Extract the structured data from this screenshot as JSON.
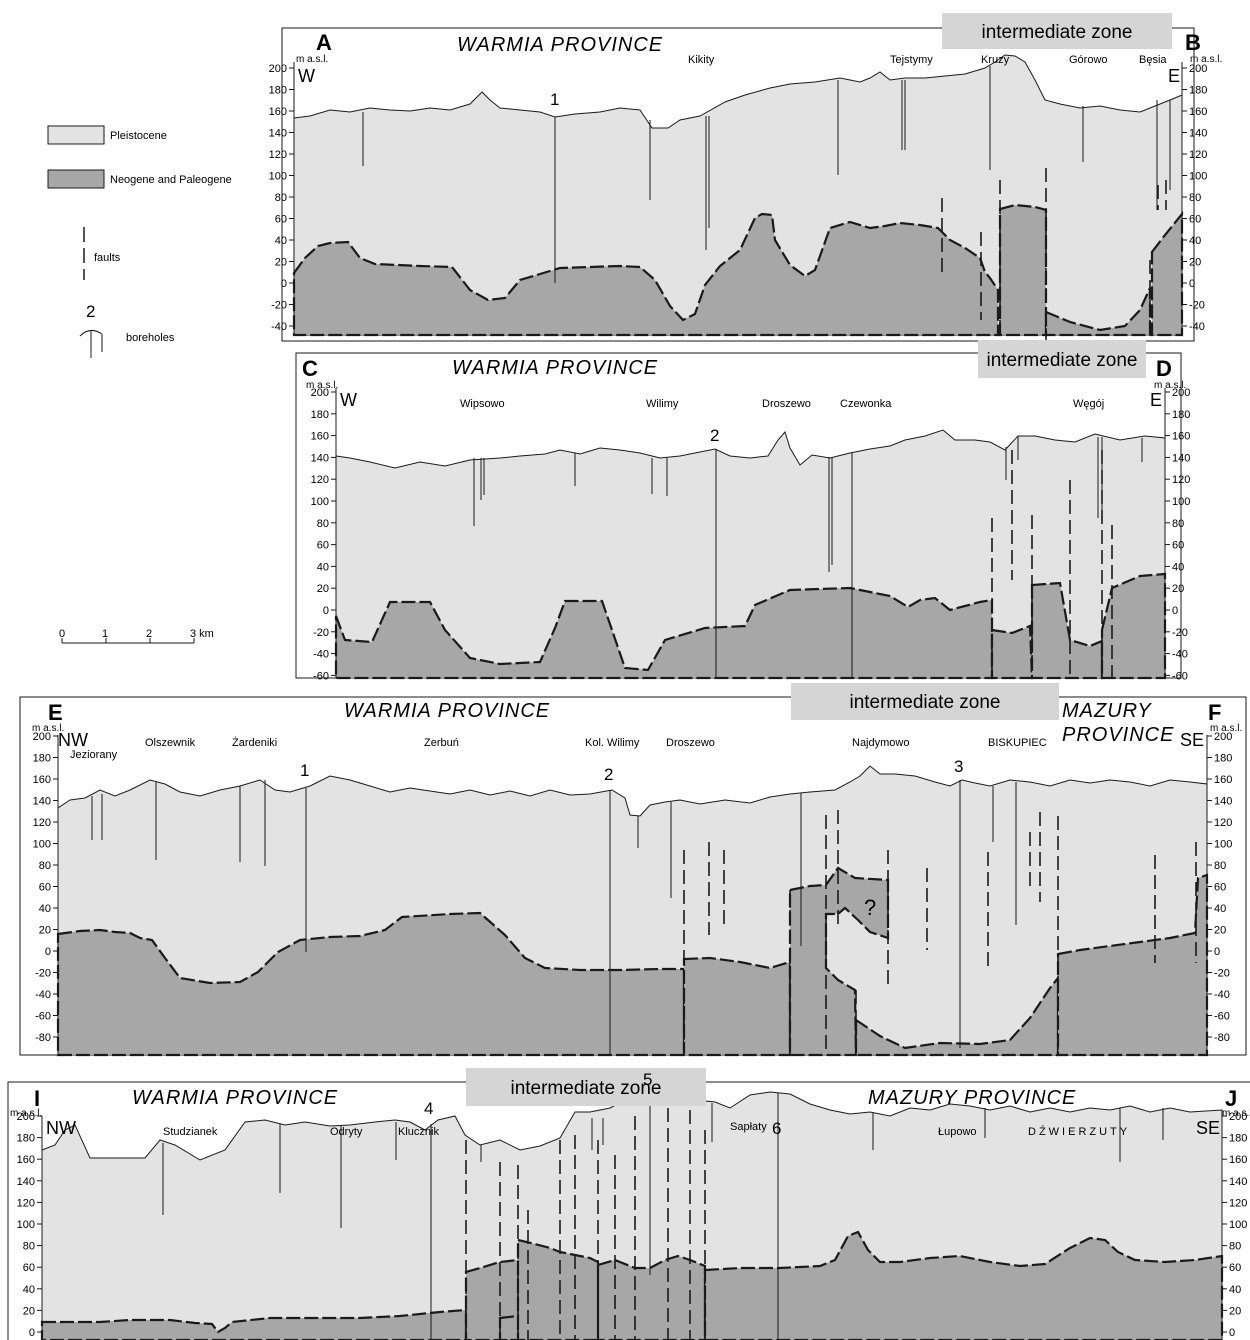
{
  "legend": {
    "pleistocene": "Pleistocene",
    "neogene": "Neogene and Paleogene",
    "faults": "faults",
    "boreholes": "boreholes",
    "borehole_example_number": "2",
    "scale_labels": [
      "0",
      "1",
      "2",
      "3 km"
    ]
  },
  "colors": {
    "pleistocene": "#e3e3e3",
    "neogene": "#a7a7a7",
    "zone_box": "#d5d5d5",
    "line": "#1a1a1a"
  },
  "unit_label": "m a.s.l.",
  "sections": [
    {
      "id": "AB",
      "left_letter": "A",
      "right_letter": "B",
      "left_dir": "W",
      "right_dir": "E",
      "province_left": "WARMIA  PROVINCE",
      "zone_label": "intermediate zone",
      "province_right": "",
      "ticks": [
        "200",
        "180",
        "160",
        "140",
        "120",
        "100",
        "80",
        "60",
        "40",
        "20",
        "0",
        "-20",
        "-40"
      ],
      "places": [
        "Kikity",
        "Tejstymy",
        "Kruzy",
        "Górowo",
        "Bęsia"
      ],
      "borehole_numbers": [
        "1"
      ]
    },
    {
      "id": "CD",
      "left_letter": "C",
      "right_letter": "D",
      "left_dir": "W",
      "right_dir": "E",
      "province_left": "WARMIA  PROVINCE",
      "zone_label": "intermediate zone",
      "province_right": "",
      "ticks": [
        "200",
        "180",
        "160",
        "140",
        "120",
        "100",
        "80",
        "60",
        "40",
        "20",
        "0",
        "-20",
        "-40",
        "-60"
      ],
      "places": [
        "Wipsowo",
        "Wilimy",
        "Droszewo",
        "Czewonka",
        "Węgój"
      ],
      "borehole_numbers": [
        "2"
      ]
    },
    {
      "id": "EF",
      "left_letter": "E",
      "right_letter": "F",
      "left_dir": "NW",
      "right_dir": "SE",
      "province_left": "WARMIA  PROVINCE",
      "zone_label": "intermediate zone",
      "province_right_lines": [
        "MAZURY",
        "PROVINCE"
      ],
      "ticks": [
        "200",
        "180",
        "160",
        "140",
        "120",
        "100",
        "80",
        "60",
        "40",
        "20",
        "0",
        "-20",
        "-40",
        "-60",
        "-80"
      ],
      "places": [
        "Jeziorany",
        "Olszewnik",
        "Żardeniki",
        "Zerbuń",
        "Kol. Wilimy",
        "Droszewo",
        "Najdymowo",
        "BISKUPIEC"
      ],
      "borehole_numbers": [
        "1",
        "2",
        "3"
      ],
      "question_mark": "?"
    },
    {
      "id": "IJ",
      "left_letter": "I",
      "right_letter": "J",
      "left_dir": "NW",
      "right_dir": "SE",
      "province_left": "WARMIA  PROVINCE",
      "zone_label": "intermediate zone",
      "province_right": "MAZURY  PROVINCE",
      "ticks": [
        "200",
        "180",
        "160",
        "140",
        "120",
        "100",
        "80",
        "60",
        "40",
        "20",
        "0"
      ],
      "places": [
        "Studzianek",
        "Odryty",
        "Klucznik",
        "Sapłaty",
        "Łupowo",
        "DŹWIERZUTY"
      ],
      "borehole_numbers": [
        "4",
        "5",
        "6"
      ]
    }
  ]
}
